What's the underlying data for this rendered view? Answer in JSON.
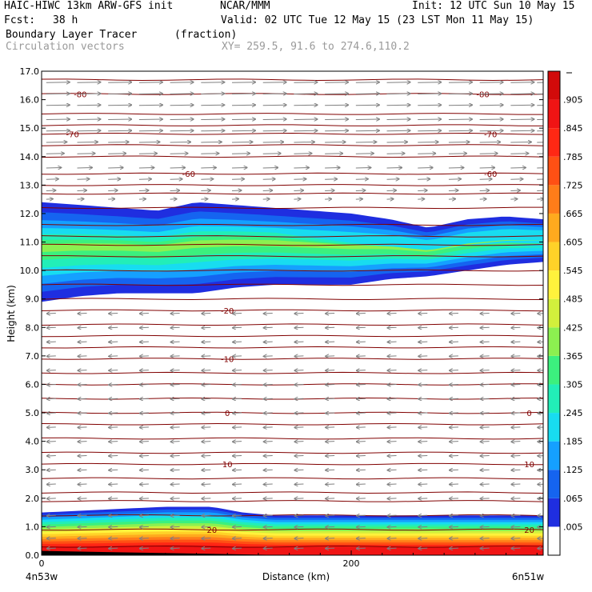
{
  "header": {
    "model": "HAIC-HIWC 13km ARW-GFS init",
    "org": "NCAR/MMM",
    "init": "Init: 12 UTC Sun 10 May 15",
    "fcst_label": "Fcst:",
    "fcst_value": "38 h",
    "valid": "Valid: 02 UTC Tue 12 May 15 (23 LST Mon 11 May 15)",
    "field_name": "Boundary Layer Tracer",
    "field_units": "(fraction)",
    "vector_field": "Circulation vectors",
    "xy": "XY= 259.5, 91.6 to 274.6,110.2"
  },
  "chart_data": {
    "type": "heatmap",
    "title": "Boundary Layer Tracer",
    "units": "(fraction)",
    "xlabel": "Distance (km)",
    "ylabel": "Height (km)",
    "xlim": [
      0,
      324
    ],
    "ylim": [
      0.0,
      17.0
    ],
    "x_ticks": [
      {
        "value": 0,
        "label": "0"
      },
      {
        "value": 200,
        "label": "200"
      }
    ],
    "endpoint_labels": {
      "left": "4n53w",
      "right": "6n51w"
    },
    "y_ticks": [
      "0.0",
      "1.0",
      "2.0",
      "3.0",
      "4.0",
      "5.0",
      "6.0",
      "7.0",
      "8.0",
      "9.0",
      "10.0",
      "11.0",
      "12.0",
      "13.0",
      "14.0",
      "15.0",
      "16.0",
      "17.0"
    ],
    "colorbar": {
      "labels": [
        ".005",
        ".065",
        ".125",
        ".185",
        ".245",
        ".305",
        ".365",
        ".425",
        ".485",
        ".545",
        ".605",
        ".665",
        ".725",
        ".785",
        ".845",
        ".905"
      ],
      "colors": [
        "#ffffff",
        "#1f2ee0",
        "#1564f0",
        "#15a0ff",
        "#18dcf0",
        "#22eeb8",
        "#3cf07e",
        "#8cf050",
        "#d2f03c",
        "#fff23c",
        "#ffd228",
        "#ffaa1e",
        "#ff7d19",
        "#ff5014",
        "#ff2814",
        "#f01414",
        "#d20a0a"
      ]
    },
    "upper_layer": {
      "x": [
        0,
        25,
        50,
        75,
        100,
        125,
        150,
        175,
        200,
        225,
        250,
        275,
        300,
        324
      ],
      "bottom": [
        8.9,
        9.1,
        9.2,
        9.2,
        9.2,
        9.4,
        9.5,
        9.5,
        9.5,
        9.7,
        9.8,
        10.0,
        10.2,
        10.3
      ],
      "top": [
        12.4,
        12.3,
        12.2,
        12.1,
        12.4,
        12.3,
        12.2,
        12.1,
        12.0,
        11.8,
        11.5,
        11.8,
        11.9,
        11.8
      ],
      "core_value": 0.4
    },
    "boundary_layer": {
      "x": [
        0,
        40,
        80,
        110,
        130,
        150,
        200,
        250,
        300,
        324
      ],
      "top": [
        1.5,
        1.6,
        1.7,
        1.7,
        1.5,
        1.4,
        1.4,
        1.4,
        1.4,
        1.4
      ],
      "surface_value": 0.97
    },
    "contours": [
      {
        "label": "-80",
        "y": 16.2,
        "positions": [
          25,
          285
        ]
      },
      {
        "label": "-70",
        "y": 14.8,
        "positions": [
          20,
          290
        ]
      },
      {
        "label": "-60",
        "y": 13.4,
        "positions": [
          95,
          290
        ]
      },
      {
        "label": "-20",
        "y": 8.6,
        "positions": [
          120
        ]
      },
      {
        "label": "-10",
        "y": 6.9,
        "positions": [
          120
        ]
      },
      {
        "label": "0",
        "y": 5.0,
        "positions": [
          120,
          315
        ]
      },
      {
        "label": "10",
        "y": 3.2,
        "positions": [
          120,
          315
        ]
      },
      {
        "label": "20",
        "y": 0.9,
        "positions": [
          110,
          315
        ]
      }
    ],
    "extra_contour_heights": [
      16.7,
      15.5,
      15.1,
      14.4,
      14.0,
      13.0,
      12.7,
      12.2,
      11.6,
      11.2,
      10.9,
      10.5,
      10.0,
      9.5,
      9.0,
      8.1,
      7.7,
      7.3,
      6.4,
      6.0,
      5.5,
      4.6,
      4.1,
      3.6,
      2.7,
      2.2,
      1.9,
      1.4,
      0.3
    ],
    "vectors": {
      "upper_heights": [
        12.5,
        12.8,
        13.2,
        13.6,
        14.1,
        14.5,
        14.9,
        15.3,
        15.8,
        16.2,
        16.6
      ],
      "lower_heights": [
        0.25,
        0.6,
        1.0,
        1.4,
        2.0,
        2.5,
        3.0,
        3.5,
        4.0,
        4.5,
        5.0,
        5.5,
        6.0,
        6.5,
        7.0,
        7.5,
        8.0,
        8.5
      ],
      "columns": [
        3,
        23,
        43,
        63,
        83,
        103,
        123,
        143,
        163,
        183,
        203,
        223,
        243,
        263,
        283,
        303,
        320
      ],
      "upper_direction": "eastward",
      "lower_direction": "westward"
    }
  }
}
